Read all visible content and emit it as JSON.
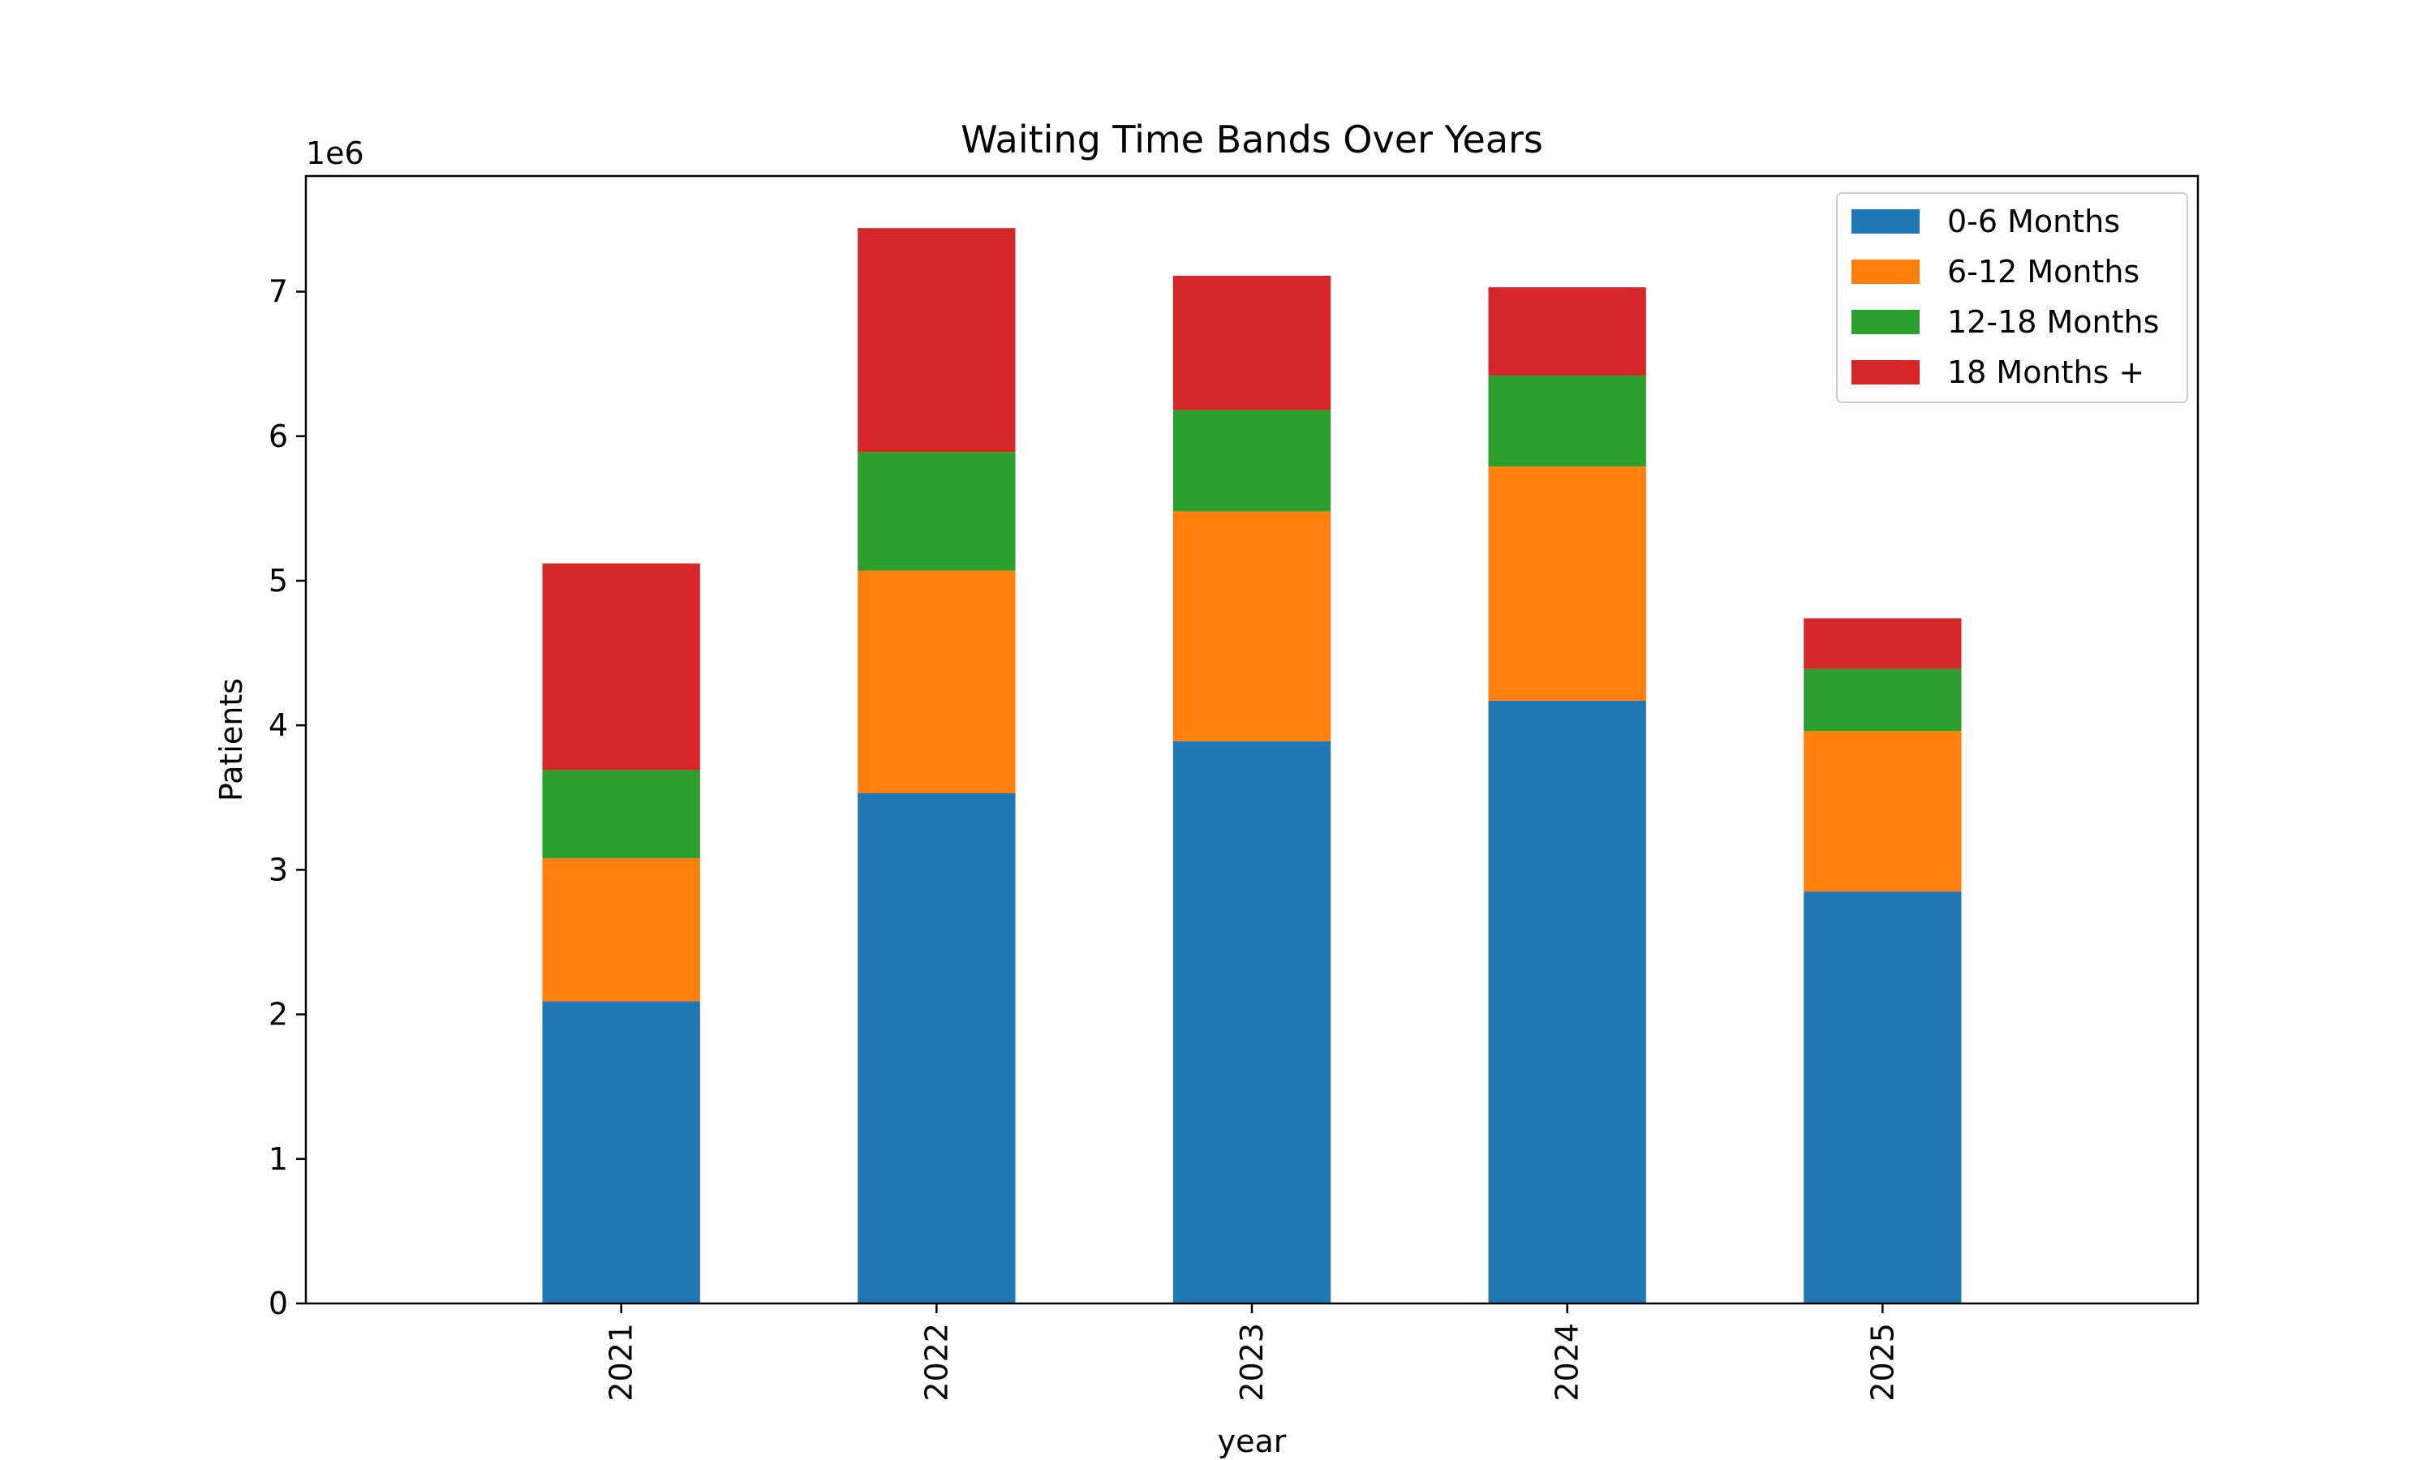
{
  "chart_data": {
    "type": "bar",
    "stacked": true,
    "title": "Waiting Time Bands Over Years",
    "xlabel": "year",
    "ylabel": "Patients",
    "y_offset_label": "1e6",
    "categories": [
      "2021",
      "2022",
      "2023",
      "2024",
      "2025"
    ],
    "series": [
      {
        "name": "0-6 Months",
        "color": "#1f77b4",
        "values": [
          2090000,
          3530000,
          3890000,
          4170000,
          2850000
        ]
      },
      {
        "name": "6-12 Months",
        "color": "#ff7f0e",
        "values": [
          990000,
          1540000,
          1590000,
          1620000,
          1110000
        ]
      },
      {
        "name": "12-18 Months",
        "color": "#2ca02c",
        "values": [
          610000,
          820000,
          700000,
          630000,
          430000
        ]
      },
      {
        "name": "18 Months +",
        "color": "#d62728",
        "values": [
          1430000,
          1550000,
          930000,
          610000,
          350000
        ]
      }
    ],
    "ylim": [
      0,
      7800000
    ],
    "yticks": [
      0,
      1,
      2,
      3,
      4,
      5,
      6,
      7
    ],
    "grid": false,
    "legend_position": "top-right"
  }
}
